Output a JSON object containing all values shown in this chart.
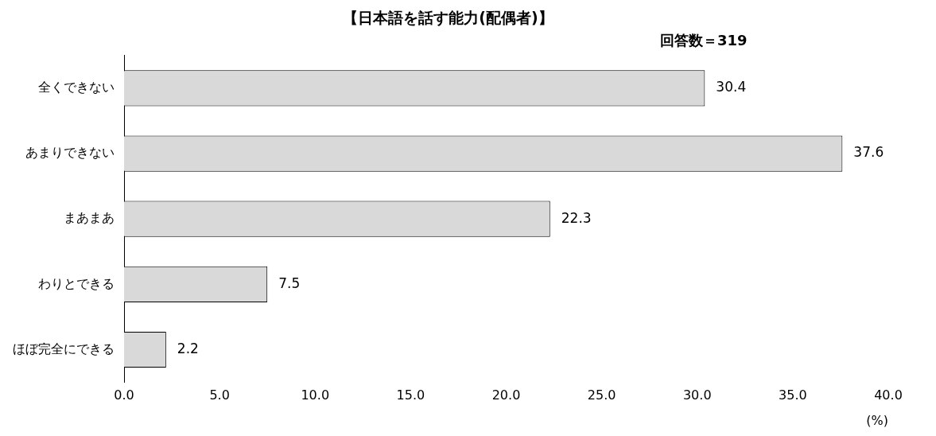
{
  "chart_data": {
    "type": "bar",
    "orientation": "horizontal",
    "title": "【日本語を話す能力(配偶者)】",
    "annotations": [
      "回答数＝319"
    ],
    "categories": [
      "全くできない",
      "あまりできない",
      "まあまあ",
      "わりとできる",
      "ほぼ完全にできる"
    ],
    "values": [
      30.4,
      37.6,
      22.3,
      7.5,
      2.2
    ],
    "color": "#d9d9d9",
    "xlim": [
      0,
      40
    ],
    "xticks": [
      {
        "value": 0,
        "label": "0.0"
      },
      {
        "value": 5,
        "label": "5.0"
      },
      {
        "value": 10,
        "label": "10.0"
      },
      {
        "value": 15,
        "label": "15.0"
      },
      {
        "value": 20,
        "label": "20.0"
      },
      {
        "value": 25,
        "label": "25.0"
      },
      {
        "value": 30,
        "label": "30.0"
      },
      {
        "value": 35,
        "label": "35.0"
      },
      {
        "value": 40,
        "label": "40.0"
      }
    ],
    "xlabel": "(%)",
    "data_labels": true,
    "grid": false,
    "legend": false
  }
}
